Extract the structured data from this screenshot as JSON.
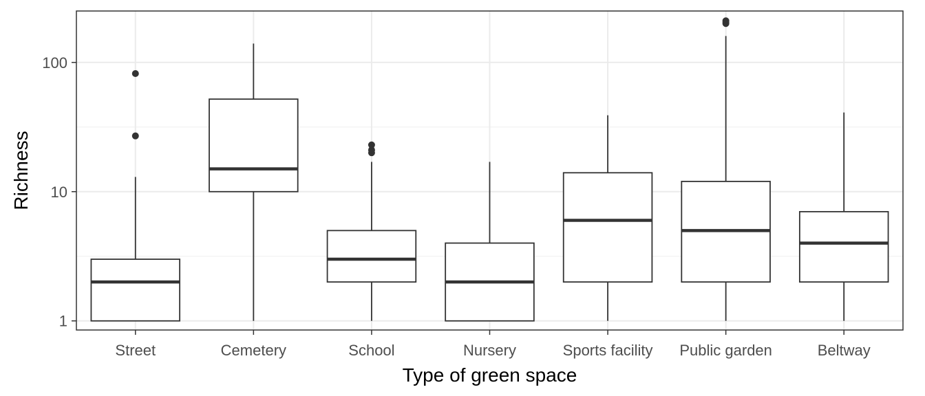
{
  "chart_data": {
    "type": "boxplot",
    "xlabel": "Type of green space",
    "ylabel": "Richness",
    "y_scale": "log10",
    "ylim": [
      0.85,
      250
    ],
    "y_ticks": [
      1,
      10,
      100
    ],
    "y_tick_labels": [
      "1",
      "10",
      "100"
    ],
    "grid": true,
    "categories": [
      "Street",
      "Cemetery",
      "School",
      "Nursery",
      "Sports facility",
      "Public garden",
      "Beltway"
    ],
    "boxes": [
      {
        "category": "Street",
        "min": 1,
        "q1": 1,
        "median": 2,
        "q3": 3,
        "max": 13,
        "outliers": [
          27,
          82
        ]
      },
      {
        "category": "Cemetery",
        "min": 1,
        "q1": 10,
        "median": 15,
        "q3": 52,
        "max": 140,
        "outliers": []
      },
      {
        "category": "School",
        "min": 1,
        "q1": 2,
        "median": 3,
        "q3": 5,
        "max": 17,
        "outliers": [
          20,
          21,
          23
        ]
      },
      {
        "category": "Nursery",
        "min": 1,
        "q1": 1,
        "median": 2,
        "q3": 4,
        "max": 17,
        "outliers": []
      },
      {
        "category": "Sports facility",
        "min": 1,
        "q1": 2,
        "median": 6,
        "q3": 14,
        "max": 39,
        "outliers": []
      },
      {
        "category": "Public garden",
        "min": 1,
        "q1": 2,
        "median": 5,
        "q3": 12,
        "max": 160,
        "outliers": [
          200,
          205,
          210
        ]
      },
      {
        "category": "Beltway",
        "min": 1,
        "q1": 2,
        "median": 4,
        "q3": 7,
        "max": 41,
        "outliers": []
      }
    ],
    "colors": {
      "box_stroke": "#333333",
      "median": "#333333",
      "outlier": "#333333",
      "grid_major": "#ebebeb",
      "grid_minor": "#f2f2f2",
      "panel_border": "#333333",
      "tick_text": "#4d4d4d",
      "title_text": "#000000"
    }
  }
}
